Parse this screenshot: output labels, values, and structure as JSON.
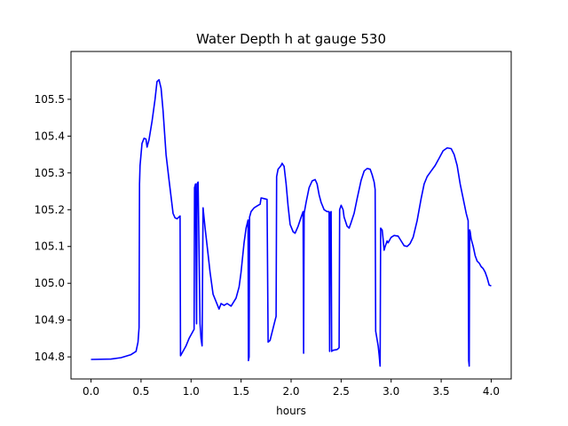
{
  "chart_data": {
    "type": "line",
    "title": "Water Depth h at gauge 530",
    "xlabel": "hours",
    "ylabel": "",
    "xlim": [
      -0.2,
      4.2
    ],
    "ylim": [
      104.74,
      105.63
    ],
    "xticks": [
      0.0,
      0.5,
      1.0,
      1.5,
      2.0,
      2.5,
      3.0,
      3.5,
      4.0
    ],
    "xtick_labels": [
      "0.0",
      "0.5",
      "1.0",
      "1.5",
      "2.0",
      "2.5",
      "3.0",
      "3.5",
      "4.0"
    ],
    "yticks": [
      104.8,
      104.9,
      105.0,
      105.1,
      105.2,
      105.3,
      105.4,
      105.5
    ],
    "ytick_labels": [
      "104.8",
      "104.9",
      "105.0",
      "105.1",
      "105.2",
      "105.3",
      "105.4",
      "105.5"
    ],
    "grid": false,
    "series": [
      {
        "color": "#0000ff",
        "points": [
          [
            0.0,
            104.793
          ],
          [
            0.2,
            104.794
          ],
          [
            0.3,
            104.798
          ],
          [
            0.4,
            104.806
          ],
          [
            0.45,
            104.815
          ],
          [
            0.47,
            104.84
          ],
          [
            0.48,
            104.88
          ],
          [
            0.485,
            105.27
          ],
          [
            0.49,
            105.32
          ],
          [
            0.51,
            105.38
          ],
          [
            0.53,
            105.394
          ],
          [
            0.55,
            105.392
          ],
          [
            0.56,
            105.37
          ],
          [
            0.58,
            105.39
          ],
          [
            0.61,
            105.44
          ],
          [
            0.64,
            105.5
          ],
          [
            0.66,
            105.548
          ],
          [
            0.68,
            105.553
          ],
          [
            0.7,
            105.53
          ],
          [
            0.72,
            105.47
          ],
          [
            0.75,
            105.35
          ],
          [
            0.78,
            105.28
          ],
          [
            0.82,
            105.19
          ],
          [
            0.84,
            105.178
          ],
          [
            0.86,
            105.175
          ],
          [
            0.89,
            105.183
          ],
          [
            0.895,
            104.803
          ],
          [
            0.95,
            104.83
          ],
          [
            0.98,
            104.85
          ],
          [
            1.03,
            104.875
          ],
          [
            1.035,
            105.26
          ],
          [
            1.045,
            105.27
          ],
          [
            1.055,
            104.89
          ],
          [
            1.06,
            105.27
          ],
          [
            1.07,
            105.275
          ],
          [
            1.09,
            104.89
          ],
          [
            1.1,
            104.85
          ],
          [
            1.11,
            104.83
          ],
          [
            1.12,
            105.205
          ],
          [
            1.14,
            105.15
          ],
          [
            1.17,
            105.08
          ],
          [
            1.19,
            105.03
          ],
          [
            1.22,
            104.97
          ],
          [
            1.25,
            104.95
          ],
          [
            1.28,
            104.93
          ],
          [
            1.3,
            104.945
          ],
          [
            1.33,
            104.94
          ],
          [
            1.36,
            104.945
          ],
          [
            1.4,
            104.938
          ],
          [
            1.45,
            104.96
          ],
          [
            1.48,
            104.99
          ],
          [
            1.5,
            105.03
          ],
          [
            1.53,
            105.11
          ],
          [
            1.55,
            105.15
          ],
          [
            1.57,
            105.172
          ],
          [
            1.573,
            104.79
          ],
          [
            1.58,
            104.8
          ],
          [
            1.585,
            105.18
          ],
          [
            1.6,
            105.195
          ],
          [
            1.63,
            105.205
          ],
          [
            1.66,
            105.21
          ],
          [
            1.69,
            105.215
          ],
          [
            1.7,
            105.232
          ],
          [
            1.73,
            105.23
          ],
          [
            1.76,
            105.228
          ],
          [
            1.77,
            104.84
          ],
          [
            1.79,
            104.845
          ],
          [
            1.84,
            104.9
          ],
          [
            1.85,
            104.91
          ],
          [
            1.855,
            105.29
          ],
          [
            1.87,
            105.31
          ],
          [
            1.9,
            105.32
          ],
          [
            1.91,
            105.326
          ],
          [
            1.93,
            105.318
          ],
          [
            1.95,
            105.27
          ],
          [
            1.97,
            105.21
          ],
          [
            1.99,
            105.16
          ],
          [
            2.02,
            105.14
          ],
          [
            2.04,
            105.136
          ],
          [
            2.07,
            105.155
          ],
          [
            2.1,
            105.18
          ],
          [
            2.12,
            105.195
          ],
          [
            2.125,
            104.81
          ],
          [
            2.13,
            105.19
          ],
          [
            2.15,
            105.22
          ],
          [
            2.18,
            105.26
          ],
          [
            2.21,
            105.278
          ],
          [
            2.24,
            105.282
          ],
          [
            2.26,
            105.27
          ],
          [
            2.28,
            105.24
          ],
          [
            2.3,
            105.22
          ],
          [
            2.33,
            105.2
          ],
          [
            2.36,
            105.195
          ],
          [
            2.38,
            105.195
          ],
          [
            2.385,
            104.815
          ],
          [
            2.39,
            105.19
          ],
          [
            2.4,
            105.195
          ],
          [
            2.405,
            104.815
          ],
          [
            2.42,
            104.818
          ],
          [
            2.46,
            104.82
          ],
          [
            2.48,
            104.825
          ],
          [
            2.485,
            105.2
          ],
          [
            2.5,
            105.212
          ],
          [
            2.52,
            105.2
          ],
          [
            2.53,
            105.18
          ],
          [
            2.56,
            105.155
          ],
          [
            2.58,
            105.15
          ],
          [
            2.6,
            105.165
          ],
          [
            2.63,
            105.19
          ],
          [
            2.66,
            105.23
          ],
          [
            2.7,
            105.28
          ],
          [
            2.73,
            105.305
          ],
          [
            2.76,
            105.312
          ],
          [
            2.79,
            105.31
          ],
          [
            2.81,
            105.295
          ],
          [
            2.83,
            105.275
          ],
          [
            2.84,
            105.255
          ],
          [
            2.845,
            104.87
          ],
          [
            2.87,
            104.83
          ],
          [
            2.88,
            104.805
          ],
          [
            2.89,
            104.775
          ],
          [
            2.895,
            105.15
          ],
          [
            2.91,
            105.145
          ],
          [
            2.92,
            105.12
          ],
          [
            2.93,
            105.09
          ],
          [
            2.94,
            105.1
          ],
          [
            2.96,
            105.115
          ],
          [
            2.97,
            105.11
          ],
          [
            3.0,
            105.125
          ],
          [
            3.03,
            105.13
          ],
          [
            3.07,
            105.128
          ],
          [
            3.1,
            105.115
          ],
          [
            3.13,
            105.102
          ],
          [
            3.16,
            105.1
          ],
          [
            3.19,
            105.108
          ],
          [
            3.22,
            105.125
          ],
          [
            3.26,
            105.17
          ],
          [
            3.3,
            105.23
          ],
          [
            3.33,
            105.27
          ],
          [
            3.36,
            105.29
          ],
          [
            3.4,
            105.305
          ],
          [
            3.44,
            105.32
          ],
          [
            3.48,
            105.34
          ],
          [
            3.52,
            105.36
          ],
          [
            3.56,
            105.368
          ],
          [
            3.6,
            105.366
          ],
          [
            3.63,
            105.35
          ],
          [
            3.66,
            105.32
          ],
          [
            3.69,
            105.27
          ],
          [
            3.72,
            105.23
          ],
          [
            3.75,
            105.19
          ],
          [
            3.77,
            105.17
          ],
          [
            3.775,
            104.79
          ],
          [
            3.78,
            104.775
          ],
          [
            3.785,
            105.145
          ],
          [
            3.79,
            105.14
          ],
          [
            3.8,
            105.12
          ],
          [
            3.82,
            105.1
          ],
          [
            3.84,
            105.075
          ],
          [
            3.86,
            105.06
          ],
          [
            3.88,
            105.055
          ],
          [
            3.9,
            105.045
          ],
          [
            3.92,
            105.04
          ],
          [
            3.94,
            105.03
          ],
          [
            3.96,
            105.015
          ],
          [
            3.98,
            104.995
          ],
          [
            4.0,
            104.993
          ]
        ]
      }
    ]
  }
}
